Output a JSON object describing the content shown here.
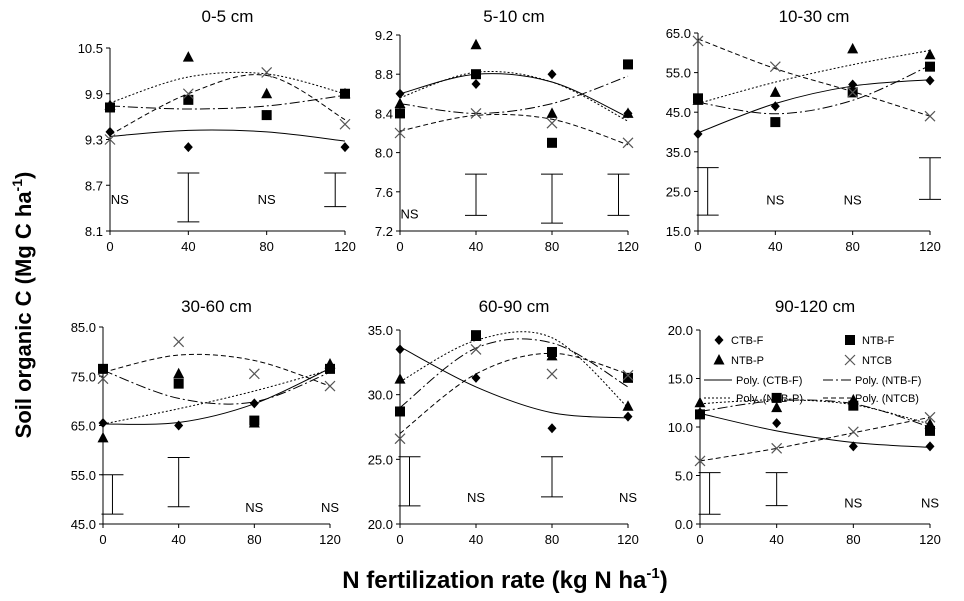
{
  "figure": {
    "ylabel_main": "Soil organic C (Mg C ha",
    "ylabel_sup": "-1",
    "ylabel_end": ")",
    "xlabel_main": "N fertilization rate (kg N ha",
    "xlabel_sup": "-1",
    "xlabel_end": ")"
  },
  "legend": [
    {
      "label": "CTB-F",
      "marker": "diamond"
    },
    {
      "label": "NTB-F",
      "marker": "square"
    },
    {
      "label": "NTB-P",
      "marker": "triangle"
    },
    {
      "label": "NTCB",
      "marker": "cross"
    },
    {
      "label": "Poly. (CTB-F)",
      "line": "solid"
    },
    {
      "label": "Poly. (NTB-F)",
      "line": "dashdot"
    },
    {
      "label": "Poly. (NTB-P)",
      "line": "dotted"
    },
    {
      "label": "Poly. (NTCB)",
      "line": "dashed"
    }
  ],
  "colors": {
    "ink": "#000000",
    "marker_gray": "#555555",
    "background": "#ffffff"
  },
  "chart_data": [
    {
      "type": "scatter",
      "title": "0-5 cm",
      "x": [
        0,
        40,
        80,
        120
      ],
      "xticks": [
        "0",
        "40",
        "80",
        "120"
      ],
      "ylim": [
        8.1,
        10.5
      ],
      "yticks": [
        "8.1",
        "8.7",
        "9.3",
        "9.9",
        "10.5"
      ],
      "series": [
        {
          "name": "CTB-F",
          "marker": "diamond",
          "values": [
            9.4,
            9.2,
            9.62,
            9.2
          ],
          "fit": [
            9.34,
            9.42,
            9.4,
            9.28
          ]
        },
        {
          "name": "NTB-F",
          "marker": "square",
          "values": [
            9.72,
            9.82,
            9.62,
            9.9
          ],
          "fit": [
            9.74,
            9.7,
            9.74,
            9.88
          ]
        },
        {
          "name": "NTB-P",
          "marker": "triangle",
          "values": [
            9.75,
            10.38,
            9.9,
            9.9
          ],
          "fit": [
            9.78,
            10.12,
            10.16,
            9.9
          ]
        },
        {
          "name": "NTCB",
          "marker": "cross",
          "values": [
            9.3,
            9.9,
            10.18,
            9.5
          ],
          "fit": [
            9.36,
            9.9,
            10.14,
            9.56
          ]
        }
      ],
      "error_bars": [
        {
          "x": 40,
          "low": 8.22,
          "high": 8.86
        },
        {
          "x": 115,
          "low": 8.42,
          "high": 8.86
        }
      ],
      "annotations": [
        {
          "text": "NS",
          "x": 5,
          "y": 8.52
        },
        {
          "text": "NS",
          "x": 80,
          "y": 8.52
        }
      ]
    },
    {
      "type": "scatter",
      "title": "5-10 cm",
      "x": [
        0,
        40,
        80,
        120
      ],
      "xticks": [
        "0",
        "40",
        "80",
        "120"
      ],
      "ylim": [
        7.2,
        9.2
      ],
      "yticks": [
        "7.2",
        "7.6",
        "8.0",
        "8.4",
        "8.8",
        "9.2"
      ],
      "series": [
        {
          "name": "CTB-F",
          "marker": "diamond",
          "values": [
            8.6,
            8.7,
            8.8,
            8.4
          ],
          "fit": [
            8.6,
            8.8,
            8.72,
            8.36
          ]
        },
        {
          "name": "NTB-F",
          "marker": "square",
          "values": [
            8.4,
            8.8,
            8.1,
            8.9
          ],
          "fit": [
            8.5,
            8.4,
            8.5,
            8.78
          ]
        },
        {
          "name": "NTB-P",
          "marker": "triangle",
          "values": [
            8.5,
            9.1,
            8.4,
            8.4
          ],
          "fit": [
            8.56,
            8.82,
            8.72,
            8.32
          ]
        },
        {
          "name": "NTCB",
          "marker": "cross",
          "values": [
            8.2,
            8.4,
            8.3,
            8.1
          ],
          "fit": [
            8.22,
            8.38,
            8.34,
            8.08
          ]
        }
      ],
      "error_bars": [
        {
          "x": 40,
          "low": 7.36,
          "high": 7.78
        },
        {
          "x": 80,
          "low": 7.28,
          "high": 7.78
        },
        {
          "x": 115,
          "low": 7.36,
          "high": 7.78
        }
      ],
      "annotations": [
        {
          "text": "NS",
          "x": 5,
          "y": 7.38
        }
      ]
    },
    {
      "type": "scatter",
      "title": "10-30 cm",
      "x": [
        0,
        40,
        80,
        120
      ],
      "xticks": [
        "0",
        "40",
        "80",
        "120"
      ],
      "ylim": [
        15.0,
        65.0
      ],
      "yticks": [
        "15.0",
        "25.0",
        "35.0",
        "45.0",
        "55.0",
        "65.0"
      ],
      "series": [
        {
          "name": "CTB-F",
          "marker": "diamond",
          "values": [
            39.5,
            46.5,
            52.0,
            53.0
          ],
          "fit": [
            39.8,
            47.2,
            51.6,
            53.2
          ]
        },
        {
          "name": "NTB-F",
          "marker": "square",
          "values": [
            48.5,
            42.5,
            50.0,
            56.5
          ],
          "fit": [
            47.5,
            44.6,
            48.0,
            56.8
          ]
        },
        {
          "name": "NTB-P",
          "marker": "triangle",
          "values": [
            48.0,
            50.0,
            61.0,
            59.5
          ],
          "fit": [
            47.2,
            52.6,
            57.0,
            60.6
          ]
        },
        {
          "name": "NTCB",
          "marker": "cross",
          "values": [
            63.0,
            56.5,
            50.0,
            44.0
          ],
          "fit": [
            63.5,
            56.0,
            50.2,
            44.0
          ]
        }
      ],
      "error_bars": [
        {
          "x": 5,
          "low": 19.0,
          "high": 31.0
        },
        {
          "x": 120,
          "low": 23.0,
          "high": 33.5
        }
      ],
      "annotations": [
        {
          "text": "NS",
          "x": 40,
          "y": 23.0
        },
        {
          "text": "NS",
          "x": 80,
          "y": 23.0
        }
      ]
    },
    {
      "type": "scatter",
      "title": "30-60 cm",
      "x": [
        0,
        40,
        80,
        120
      ],
      "xticks": [
        "0",
        "40",
        "80",
        "120"
      ],
      "ylim": [
        45.0,
        85.0
      ],
      "yticks": [
        "45.0",
        "55.0",
        "65.0",
        "75.0",
        "85.0"
      ],
      "series": [
        {
          "name": "CTB-F",
          "marker": "diamond",
          "values": [
            65.5,
            65.0,
            69.5,
            76.5
          ],
          "fit": [
            65.3,
            65.6,
            69.4,
            76.6
          ]
        },
        {
          "name": "NTB-F",
          "marker": "square",
          "values": [
            76.5,
            73.5,
            66.0,
            76.5
          ],
          "fit": [
            76.2,
            70.5,
            69.8,
            75.8
          ]
        },
        {
          "name": "NTB-P",
          "marker": "triangle",
          "values": [
            62.5,
            75.5,
            65.5,
            77.5
          ],
          "fit": [
            65.3,
            68.4,
            72.0,
            76.3
          ]
        },
        {
          "name": "NTCB",
          "marker": "cross",
          "values": [
            74.5,
            82.0,
            75.5,
            73.0
          ],
          "fit": [
            75.8,
            79.3,
            78.2,
            73.0
          ]
        }
      ],
      "error_bars": [
        {
          "x": 5,
          "low": 47.0,
          "high": 55.0
        },
        {
          "x": 40,
          "low": 48.5,
          "high": 58.5
        }
      ],
      "annotations": [
        {
          "text": "NS",
          "x": 80,
          "y": 48.5
        },
        {
          "text": "NS",
          "x": 120,
          "y": 48.5
        }
      ]
    },
    {
      "type": "scatter",
      "title": "60-90 cm",
      "x": [
        0,
        40,
        80,
        120
      ],
      "xticks": [
        "0",
        "40",
        "80",
        "120"
      ],
      "ylim": [
        20.0,
        35.0
      ],
      "yticks": [
        "20.0",
        "25.0",
        "30.0",
        "35.0"
      ],
      "series": [
        {
          "name": "CTB-F",
          "marker": "diamond",
          "values": [
            33.5,
            31.3,
            27.4,
            28.3
          ],
          "fit": [
            33.7,
            30.6,
            28.6,
            28.2
          ]
        },
        {
          "name": "NTB-F",
          "marker": "square",
          "values": [
            28.7,
            34.6,
            33.3,
            31.3
          ],
          "fit": [
            29.0,
            33.6,
            34.0,
            30.6
          ]
        },
        {
          "name": "NTB-P",
          "marker": "triangle",
          "values": [
            31.2,
            34.5,
            33.0,
            29.1
          ],
          "fit": [
            31.0,
            34.2,
            34.4,
            29.0
          ]
        },
        {
          "name": "NTCB",
          "marker": "cross",
          "values": [
            26.6,
            33.5,
            31.6,
            31.5
          ],
          "fit": [
            27.0,
            31.6,
            33.2,
            31.6
          ]
        }
      ],
      "error_bars": [
        {
          "x": 5,
          "low": 21.4,
          "high": 25.2
        },
        {
          "x": 80,
          "low": 22.1,
          "high": 25.2
        }
      ],
      "annotations": [
        {
          "text": "NS",
          "x": 40,
          "y": 22.1
        },
        {
          "text": "NS",
          "x": 120,
          "y": 22.1
        }
      ]
    },
    {
      "type": "scatter",
      "title": "90-120 cm",
      "x": [
        0,
        40,
        80,
        120
      ],
      "xticks": [
        "0",
        "40",
        "80",
        "120"
      ],
      "ylim": [
        0.0,
        20.0
      ],
      "yticks": [
        "0.0",
        "5.0",
        "10.0",
        "15.0",
        "20.0"
      ],
      "series": [
        {
          "name": "CTB-F",
          "marker": "diamond",
          "values": [
            11.5,
            10.4,
            8.0,
            8.0
          ],
          "fit": [
            11.4,
            9.6,
            8.4,
            7.9
          ]
        },
        {
          "name": "NTB-F",
          "marker": "square",
          "values": [
            11.3,
            13.0,
            12.2,
            9.6
          ],
          "fit": [
            11.6,
            12.7,
            12.4,
            10.0
          ]
        },
        {
          "name": "NTB-P",
          "marker": "triangle",
          "values": [
            12.5,
            12.0,
            12.8,
            10.3
          ],
          "fit": [
            12.4,
            12.8,
            12.3,
            10.3
          ]
        },
        {
          "name": "NTCB",
          "marker": "cross",
          "values": [
            6.5,
            7.8,
            9.5,
            11.0
          ],
          "fit": [
            6.5,
            7.8,
            9.4,
            11.0
          ]
        }
      ],
      "error_bars": [
        {
          "x": 5,
          "low": 1.0,
          "high": 5.3
        },
        {
          "x": 40,
          "low": 1.9,
          "high": 5.3
        }
      ],
      "annotations": [
        {
          "text": "NS",
          "x": 80,
          "y": 2.2
        },
        {
          "text": "NS",
          "x": 120,
          "y": 2.2
        }
      ]
    }
  ]
}
